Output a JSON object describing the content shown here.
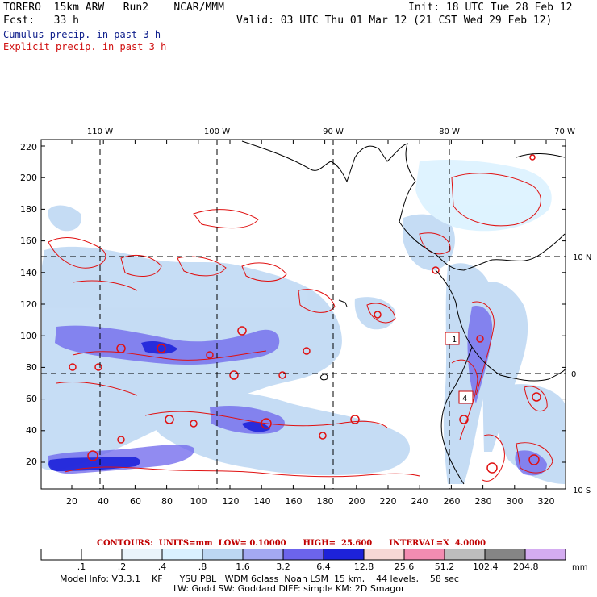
{
  "header": {
    "model": "TORERO  15km ARW   Run2    NCAR/MMM",
    "init": "Init: 18 UTC Tue 28 Feb 12",
    "fcst": "Fcst:   33 h",
    "valid": "Valid: 03 UTC Thu 01 Mar 12 (21 CST Wed 29 Feb 12)",
    "field1": "Cumulus precip. in past 3 h",
    "field2": "Explicit precip. in past 3 h"
  },
  "map": {
    "lon_labels": [
      "110 W",
      "100 W",
      "90 W",
      "80 W",
      "70 W"
    ],
    "lat_labels": [
      "10 N",
      "0",
      "10 S"
    ],
    "y_ticks": [
      "220",
      "200",
      "180",
      "160",
      "140",
      "120",
      "100",
      "80",
      "60",
      "40",
      "20"
    ],
    "x_ticks": [
      "20",
      "40",
      "60",
      "80",
      "100",
      "120",
      "140",
      "160",
      "180",
      "200",
      "220",
      "240",
      "260",
      "280",
      "300",
      "320"
    ],
    "markers": [
      "1",
      "4"
    ]
  },
  "legend": {
    "contours_label": "CONTOURS:  UNITS=mm  LOW= 0.10000      HIGH=  25.600      INTERVAL=X  4.0000",
    "units": "mm",
    "levels": [
      ".1",
      ".2",
      ".4",
      ".8",
      "1.6",
      "3.2",
      "6.4",
      "12.8",
      "25.6",
      "51.2",
      "102.4",
      "204.8"
    ],
    "colors": [
      "#ffffff",
      "#ffffff",
      "#e9f4fb",
      "#d9f1ff",
      "#bcd7f3",
      "#a3a9f2",
      "#6c64ec",
      "#1d22d9",
      "#f7d8d5",
      "#f38cb1",
      "#bdbdbd",
      "#858585",
      "#d4acf1"
    ]
  },
  "footer": {
    "info1": "Model Info: V3.3.1    KF      YSU PBL   WDM 6class  Noah LSM  15 km,    44 levels,    58 sec",
    "info2": "LW: Godd SW: Goddard DIFF: simple KM: 2D Smagor"
  }
}
